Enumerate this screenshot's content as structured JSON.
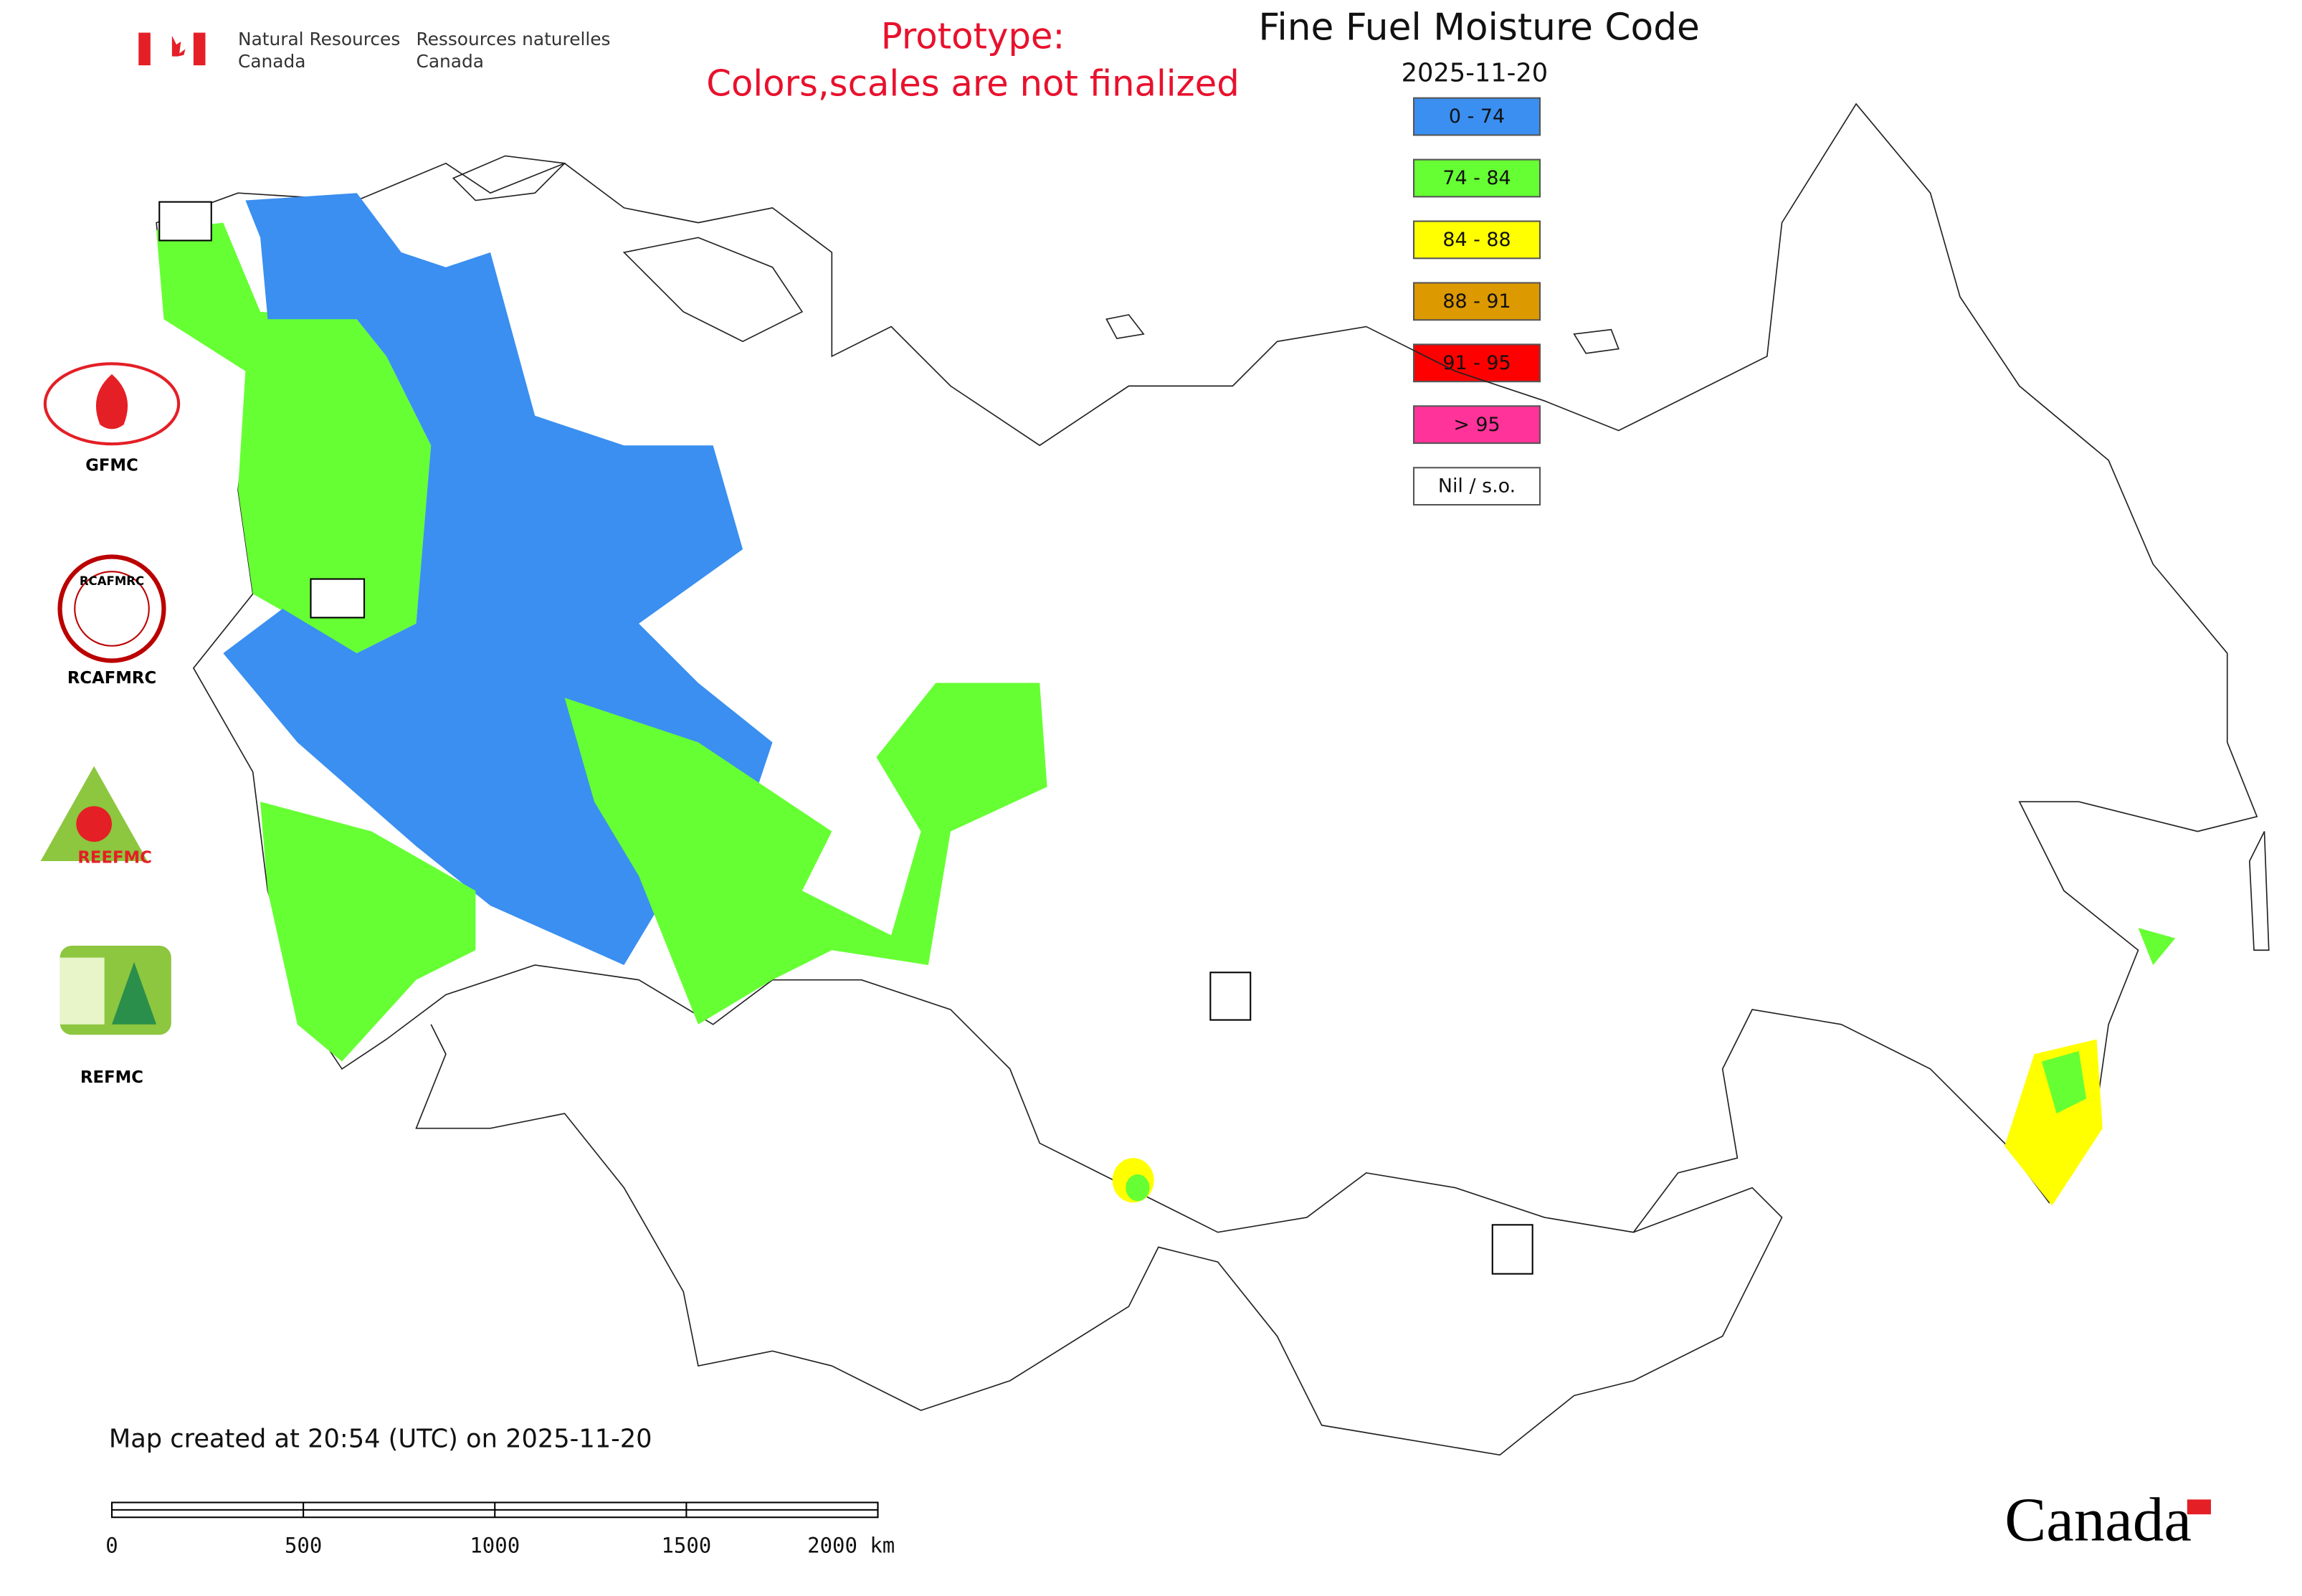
{
  "header": {
    "nrcan_en": [
      "Natural Resources",
      "Canada"
    ],
    "nrcan_fr": [
      "Ressources naturelles",
      "Canada"
    ],
    "prototype": [
      "Prototype:",
      "Colors,scales are not finalized"
    ],
    "title": "Fine Fuel Moisture Code",
    "date": "2025-11-20"
  },
  "legend": [
    {
      "label": "0 - 74",
      "color": "#3a8ff0"
    },
    {
      "label": "74 - 84",
      "color": "#66ff33"
    },
    {
      "label": "84 - 88",
      "color": "#ffff00"
    },
    {
      "label": "88 - 91",
      "color": "#dd9900"
    },
    {
      "label": "91 - 95",
      "color": "#ff0000"
    },
    {
      "label": "> 95",
      "color": "#ff3399"
    },
    {
      "label": "Nil / s.o.",
      "color": "#ffffff"
    }
  ],
  "logos": {
    "gfmc": "GFMC",
    "rcafmrc": "RCAFMRC",
    "reefmc_mark": "REEFMC",
    "refmc": "REFMC"
  },
  "footer": {
    "created": "Map created at 20:54 (UTC) on 2025-11-20",
    "scale_labels": [
      "0",
      "500",
      "1000",
      "1500",
      "2000 km"
    ],
    "wordmark": "Canada"
  }
}
